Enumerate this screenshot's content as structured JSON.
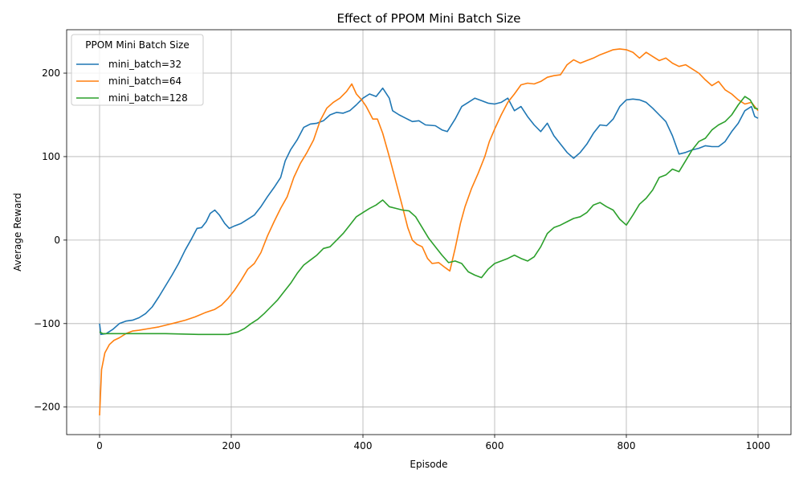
{
  "chart_data": {
    "type": "line",
    "title": "Effect of PPOM Mini Batch Size",
    "xlabel": "Episode",
    "ylabel": "Average Reward",
    "xlim": [
      -50,
      1050
    ],
    "ylim": [
      -233,
      252
    ],
    "xticks": [
      0,
      200,
      400,
      600,
      800,
      1000
    ],
    "yticks": [
      -200,
      -100,
      0,
      100,
      200
    ],
    "tick_labels_x": [
      "0",
      "200",
      "400",
      "600",
      "800",
      "1000"
    ],
    "tick_labels_y": [
      "−200",
      "−100",
      "0",
      "100",
      "200"
    ],
    "grid": true,
    "legend": {
      "title": "PPOM Mini Batch Size",
      "placement": "top-left"
    },
    "series": [
      {
        "name": "mini_batch=32",
        "color": "#1f77b4",
        "points": [
          [
            0,
            -100
          ],
          [
            2,
            -113
          ],
          [
            10,
            -112
          ],
          [
            20,
            -107
          ],
          [
            30,
            -100
          ],
          [
            40,
            -97
          ],
          [
            50,
            -96
          ],
          [
            60,
            -93
          ],
          [
            70,
            -88
          ],
          [
            80,
            -80
          ],
          [
            90,
            -68
          ],
          [
            100,
            -55
          ],
          [
            110,
            -42
          ],
          [
            120,
            -28
          ],
          [
            130,
            -12
          ],
          [
            140,
            2
          ],
          [
            148,
            14
          ],
          [
            155,
            15
          ],
          [
            162,
            22
          ],
          [
            168,
            32
          ],
          [
            175,
            36
          ],
          [
            182,
            30
          ],
          [
            190,
            20
          ],
          [
            197,
            14
          ],
          [
            205,
            17
          ],
          [
            215,
            20
          ],
          [
            225,
            25
          ],
          [
            235,
            30
          ],
          [
            245,
            40
          ],
          [
            255,
            52
          ],
          [
            265,
            63
          ],
          [
            275,
            75
          ],
          [
            282,
            95
          ],
          [
            290,
            108
          ],
          [
            300,
            120
          ],
          [
            310,
            135
          ],
          [
            320,
            139
          ],
          [
            330,
            140
          ],
          [
            340,
            143
          ],
          [
            350,
            150
          ],
          [
            360,
            153
          ],
          [
            370,
            152
          ],
          [
            380,
            155
          ],
          [
            390,
            162
          ],
          [
            400,
            170
          ],
          [
            410,
            175
          ],
          [
            420,
            172
          ],
          [
            430,
            182
          ],
          [
            440,
            170
          ],
          [
            445,
            155
          ],
          [
            455,
            150
          ],
          [
            465,
            146
          ],
          [
            475,
            142
          ],
          [
            485,
            143
          ],
          [
            495,
            138
          ],
          [
            510,
            137
          ],
          [
            520,
            132
          ],
          [
            528,
            130
          ],
          [
            540,
            145
          ],
          [
            550,
            160
          ],
          [
            560,
            165
          ],
          [
            570,
            170
          ],
          [
            580,
            167
          ],
          [
            590,
            164
          ],
          [
            600,
            163
          ],
          [
            610,
            165
          ],
          [
            620,
            170
          ],
          [
            630,
            155
          ],
          [
            640,
            160
          ],
          [
            650,
            148
          ],
          [
            660,
            138
          ],
          [
            670,
            130
          ],
          [
            680,
            140
          ],
          [
            690,
            125
          ],
          [
            700,
            115
          ],
          [
            710,
            105
          ],
          [
            720,
            98
          ],
          [
            730,
            105
          ],
          [
            740,
            115
          ],
          [
            750,
            128
          ],
          [
            760,
            138
          ],
          [
            770,
            137
          ],
          [
            780,
            145
          ],
          [
            790,
            160
          ],
          [
            800,
            168
          ],
          [
            810,
            169
          ],
          [
            820,
            168
          ],
          [
            830,
            165
          ],
          [
            840,
            158
          ],
          [
            850,
            150
          ],
          [
            860,
            142
          ],
          [
            870,
            125
          ],
          [
            880,
            103
          ],
          [
            890,
            105
          ],
          [
            900,
            108
          ],
          [
            910,
            110
          ],
          [
            920,
            113
          ],
          [
            930,
            112
          ],
          [
            940,
            112
          ],
          [
            950,
            118
          ],
          [
            960,
            130
          ],
          [
            970,
            140
          ],
          [
            980,
            155
          ],
          [
            990,
            160
          ],
          [
            995,
            148
          ],
          [
            1000,
            146
          ]
        ]
      },
      {
        "name": "mini_batch=64",
        "color": "#ff7f0e",
        "points": [
          [
            0,
            -210
          ],
          [
            3,
            -155
          ],
          [
            8,
            -135
          ],
          [
            15,
            -125
          ],
          [
            22,
            -120
          ],
          [
            30,
            -117
          ],
          [
            40,
            -112
          ],
          [
            50,
            -109
          ],
          [
            60,
            -108
          ],
          [
            75,
            -106
          ],
          [
            90,
            -104
          ],
          [
            100,
            -102
          ],
          [
            115,
            -99
          ],
          [
            130,
            -96
          ],
          [
            145,
            -92
          ],
          [
            160,
            -87
          ],
          [
            175,
            -83
          ],
          [
            185,
            -78
          ],
          [
            195,
            -70
          ],
          [
            205,
            -60
          ],
          [
            215,
            -48
          ],
          [
            225,
            -35
          ],
          [
            235,
            -28
          ],
          [
            245,
            -15
          ],
          [
            255,
            5
          ],
          [
            265,
            22
          ],
          [
            275,
            38
          ],
          [
            285,
            52
          ],
          [
            295,
            75
          ],
          [
            305,
            92
          ],
          [
            315,
            105
          ],
          [
            325,
            120
          ],
          [
            335,
            143
          ],
          [
            345,
            158
          ],
          [
            355,
            165
          ],
          [
            365,
            170
          ],
          [
            375,
            178
          ],
          [
            383,
            187
          ],
          [
            390,
            175
          ],
          [
            398,
            168
          ],
          [
            405,
            160
          ],
          [
            415,
            145
          ],
          [
            422,
            145
          ],
          [
            430,
            128
          ],
          [
            440,
            100
          ],
          [
            450,
            70
          ],
          [
            460,
            40
          ],
          [
            468,
            15
          ],
          [
            475,
            0
          ],
          [
            482,
            -5
          ],
          [
            490,
            -8
          ],
          [
            498,
            -22
          ],
          [
            505,
            -28
          ],
          [
            515,
            -27
          ],
          [
            525,
            -33
          ],
          [
            532,
            -37
          ],
          [
            540,
            -10
          ],
          [
            548,
            20
          ],
          [
            555,
            40
          ],
          [
            565,
            62
          ],
          [
            575,
            80
          ],
          [
            585,
            100
          ],
          [
            592,
            118
          ],
          [
            600,
            133
          ],
          [
            610,
            150
          ],
          [
            620,
            165
          ],
          [
            630,
            175
          ],
          [
            640,
            186
          ],
          [
            650,
            188
          ],
          [
            660,
            187
          ],
          [
            670,
            190
          ],
          [
            680,
            195
          ],
          [
            690,
            197
          ],
          [
            700,
            198
          ],
          [
            710,
            210
          ],
          [
            720,
            216
          ],
          [
            730,
            212
          ],
          [
            740,
            215
          ],
          [
            750,
            218
          ],
          [
            760,
            222
          ],
          [
            770,
            225
          ],
          [
            780,
            228
          ],
          [
            790,
            229
          ],
          [
            800,
            228
          ],
          [
            810,
            225
          ],
          [
            820,
            218
          ],
          [
            830,
            225
          ],
          [
            840,
            220
          ],
          [
            850,
            215
          ],
          [
            860,
            218
          ],
          [
            870,
            212
          ],
          [
            880,
            208
          ],
          [
            890,
            210
          ],
          [
            900,
            205
          ],
          [
            910,
            200
          ],
          [
            920,
            192
          ],
          [
            930,
            185
          ],
          [
            940,
            190
          ],
          [
            950,
            180
          ],
          [
            960,
            175
          ],
          [
            970,
            168
          ],
          [
            980,
            163
          ],
          [
            990,
            165
          ],
          [
            1000,
            155
          ]
        ]
      },
      {
        "name": "mini_batch=128",
        "color": "#2ca02c",
        "points": [
          [
            0,
            -110
          ],
          [
            5,
            -112
          ],
          [
            20,
            -112
          ],
          [
            50,
            -112
          ],
          [
            100,
            -112
          ],
          [
            150,
            -113
          ],
          [
            180,
            -113
          ],
          [
            195,
            -113
          ],
          [
            210,
            -110
          ],
          [
            220,
            -106
          ],
          [
            230,
            -100
          ],
          [
            240,
            -95
          ],
          [
            250,
            -88
          ],
          [
            260,
            -80
          ],
          [
            270,
            -72
          ],
          [
            280,
            -62
          ],
          [
            290,
            -52
          ],
          [
            300,
            -40
          ],
          [
            310,
            -30
          ],
          [
            320,
            -24
          ],
          [
            330,
            -18
          ],
          [
            340,
            -10
          ],
          [
            350,
            -8
          ],
          [
            360,
            0
          ],
          [
            370,
            8
          ],
          [
            380,
            18
          ],
          [
            390,
            28
          ],
          [
            400,
            33
          ],
          [
            410,
            38
          ],
          [
            420,
            42
          ],
          [
            430,
            48
          ],
          [
            440,
            40
          ],
          [
            450,
            38
          ],
          [
            460,
            36
          ],
          [
            470,
            35
          ],
          [
            480,
            28
          ],
          [
            490,
            15
          ],
          [
            500,
            2
          ],
          [
            510,
            -8
          ],
          [
            520,
            -18
          ],
          [
            530,
            -27
          ],
          [
            540,
            -25
          ],
          [
            550,
            -28
          ],
          [
            555,
            -33
          ],
          [
            560,
            -38
          ],
          [
            570,
            -42
          ],
          [
            580,
            -45
          ],
          [
            590,
            -35
          ],
          [
            600,
            -28
          ],
          [
            610,
            -25
          ],
          [
            620,
            -22
          ],
          [
            630,
            -18
          ],
          [
            640,
            -22
          ],
          [
            650,
            -25
          ],
          [
            660,
            -20
          ],
          [
            670,
            -8
          ],
          [
            680,
            8
          ],
          [
            690,
            15
          ],
          [
            700,
            18
          ],
          [
            710,
            22
          ],
          [
            720,
            26
          ],
          [
            730,
            28
          ],
          [
            740,
            33
          ],
          [
            750,
            42
          ],
          [
            760,
            45
          ],
          [
            770,
            40
          ],
          [
            780,
            36
          ],
          [
            790,
            25
          ],
          [
            800,
            18
          ],
          [
            810,
            30
          ],
          [
            820,
            43
          ],
          [
            830,
            50
          ],
          [
            840,
            60
          ],
          [
            850,
            75
          ],
          [
            860,
            78
          ],
          [
            870,
            85
          ],
          [
            880,
            82
          ],
          [
            890,
            95
          ],
          [
            900,
            108
          ],
          [
            910,
            118
          ],
          [
            920,
            122
          ],
          [
            930,
            132
          ],
          [
            940,
            138
          ],
          [
            950,
            142
          ],
          [
            960,
            150
          ],
          [
            970,
            162
          ],
          [
            980,
            172
          ],
          [
            988,
            168
          ],
          [
            995,
            158
          ],
          [
            1000,
            157
          ]
        ]
      }
    ]
  }
}
